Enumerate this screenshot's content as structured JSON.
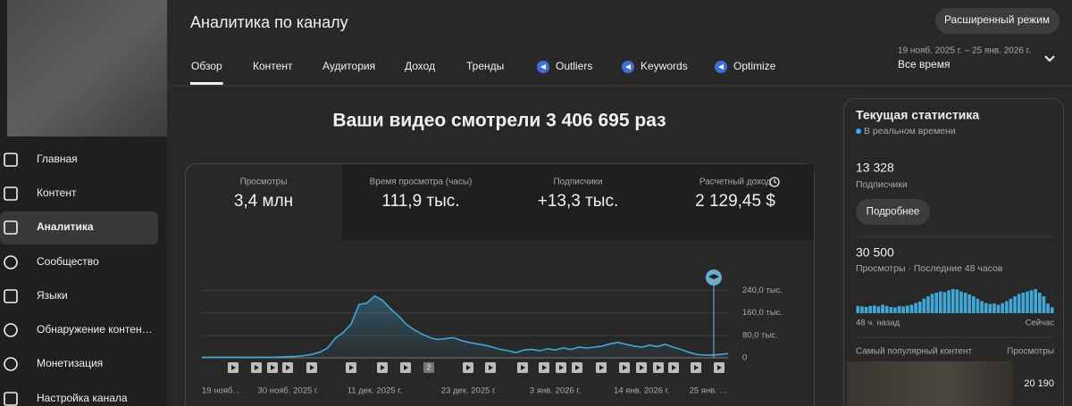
{
  "sidebar": {
    "nav": [
      "Главная",
      "Контент",
      "Аналитика",
      "Сообщество",
      "Языки",
      "Обнаружение контен…",
      "Монетизация",
      "Настройка канала"
    ]
  },
  "header": {
    "title": "Аналитика по каналу",
    "advanced_button": "Расширенный режим",
    "date_range": "19 нояб. 2025 г. – 25 янв. 2026 г.",
    "period": "Все время"
  },
  "tabs": [
    "Обзор",
    "Контент",
    "Аудитория",
    "Доход",
    "Тренды",
    "Outliers",
    "Keywords",
    "Optimize"
  ],
  "headline": "Ваши видео смотрели 3 406 695 раз",
  "metrics": [
    {
      "label": "Просмотры",
      "value": "3,4 млн"
    },
    {
      "label": "Время просмотра (часы)",
      "value": "111,9 тыс."
    },
    {
      "label": "Подписчики",
      "value": "+13,3 тыс."
    },
    {
      "label": "Расчетный доход",
      "value": "2 129,45 $"
    }
  ],
  "chart": {
    "type": "line",
    "color": "#41a7d6",
    "categories": [
      "19 нояб…",
      null,
      null,
      null,
      null,
      null,
      null,
      null,
      null,
      null,
      null,
      "30 нояб. 2025 г.",
      null,
      null,
      null,
      null,
      null,
      null,
      null,
      null,
      null,
      null,
      "11 дек. 2025 г.",
      null,
      null,
      null,
      null,
      null,
      null,
      null,
      null,
      null,
      null,
      null,
      "23 дек. 2025 г.",
      null,
      null,
      null,
      null,
      null,
      null,
      null,
      null,
      null,
      null,
      "3 янв. 2026 г.",
      null,
      null,
      null,
      null,
      null,
      null,
      null,
      null,
      null,
      null,
      "14 янв. 2026 г.",
      null,
      null,
      null,
      null,
      null,
      null,
      null,
      null,
      null,
      null,
      "25 янв. …"
    ],
    "values": [
      2000,
      2000,
      2000,
      2000,
      2000,
      2000,
      2000,
      2000,
      2000,
      2000,
      3000,
      4000,
      5000,
      8000,
      12000,
      20000,
      35000,
      70000,
      90000,
      120000,
      190000,
      195000,
      220000,
      205000,
      175000,
      150000,
      120000,
      100000,
      85000,
      72000,
      65000,
      68000,
      72000,
      62000,
      55000,
      50000,
      45000,
      38000,
      30000,
      25000,
      18000,
      28000,
      30000,
      25000,
      32000,
      28000,
      35000,
      30000,
      38000,
      35000,
      38000,
      42000,
      50000,
      55000,
      48000,
      42000,
      38000,
      45000,
      40000,
      48000,
      38000,
      30000,
      20000,
      12000,
      10000,
      10000,
      12000,
      15000
    ],
    "ylim": [
      0,
      270000
    ],
    "yticks": [
      {
        "value": 0,
        "label": "0"
      },
      {
        "value": 80000,
        "label": "80,0 тыс."
      },
      {
        "value": 160000,
        "label": "160,0 тыс."
      },
      {
        "value": 240000,
        "label": "240,0 тыс."
      }
    ],
    "marker_badge": "2"
  },
  "realtime": {
    "title": "Текущая статистика",
    "subtitle": "В реальном времени",
    "subscribers_value": "13 328",
    "subscribers_label": "Подписчики",
    "button": "Подробнее",
    "views_value": "30 500",
    "views_label": "Просмотры · Последние 48 часов",
    "bars": [
      300,
      280,
      260,
      300,
      320,
      280,
      350,
      300,
      260,
      240,
      300,
      280,
      320,
      350,
      420,
      480,
      600,
      700,
      800,
      850,
      900,
      880,
      950,
      1000,
      980,
      900,
      850,
      780,
      700,
      600,
      500,
      420,
      380,
      400,
      350,
      420,
      500,
      600,
      700,
      800,
      850,
      900,
      950,
      1000,
      850,
      700,
      400,
      250
    ],
    "bars_start": "48 ч. назад",
    "bars_end": "Сейчас",
    "top_content_label": "Самый популярный контент",
    "top_content_metric": "Просмотры",
    "top_content_value": "20 190"
  }
}
